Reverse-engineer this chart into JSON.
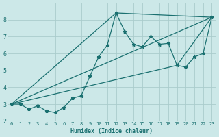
{
  "xlabel": "Humidex (Indice chaleur)",
  "bg_color": "#cce8e8",
  "grid_color": "#aacccc",
  "line_color": "#1a7070",
  "xlim": [
    -0.5,
    23.5
  ],
  "ylim": [
    2,
    9
  ],
  "yticks": [
    2,
    3,
    4,
    5,
    6,
    7,
    8
  ],
  "xticks": [
    0,
    1,
    2,
    3,
    4,
    5,
    6,
    7,
    8,
    9,
    10,
    11,
    12,
    13,
    14,
    15,
    16,
    17,
    18,
    19,
    20,
    21,
    22,
    23
  ],
  "main_x": [
    0,
    1,
    2,
    3,
    4,
    5,
    6,
    7,
    8,
    9,
    10,
    11,
    12,
    13,
    14,
    15,
    16,
    17,
    18,
    19,
    20,
    21,
    22,
    23
  ],
  "main_y": [
    3.0,
    3.0,
    2.7,
    2.9,
    2.6,
    2.5,
    2.8,
    3.35,
    3.5,
    4.65,
    5.8,
    6.5,
    8.4,
    7.3,
    6.55,
    6.4,
    7.0,
    6.55,
    6.6,
    5.3,
    5.2,
    5.8,
    6.0,
    8.15
  ],
  "line2_x": [
    0,
    12,
    23
  ],
  "line2_y": [
    3.0,
    8.4,
    8.15
  ],
  "line3_x": [
    0,
    19,
    23
  ],
  "line3_y": [
    3.0,
    5.3,
    8.15
  ],
  "line4_x": [
    0,
    23
  ],
  "line4_y": [
    3.0,
    8.15
  ]
}
